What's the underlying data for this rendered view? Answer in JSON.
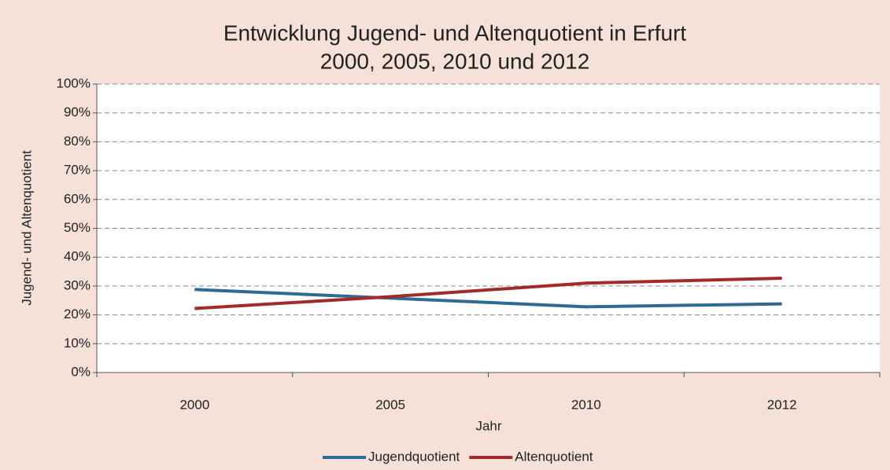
{
  "chart_data": {
    "type": "line",
    "title": "Entwicklung Jugend- und Altenquotient in Erfurt",
    "subtitle": "2000, 2005, 2010 und 2012",
    "x_label": "Jahr",
    "y_label": "Jugend- und Altenquotient",
    "categories": [
      "2000",
      "2005",
      "2010",
      "2012"
    ],
    "series": [
      {
        "name": "Jugendquotient",
        "color": "#2e6a94",
        "values": [
          28.8,
          25.8,
          22.8,
          23.8
        ]
      },
      {
        "name": "Altenquotient",
        "color": "#a32a2a",
        "values": [
          22.2,
          26.3,
          31.0,
          32.7
        ]
      }
    ],
    "ylim": [
      0,
      100
    ],
    "yticks": [
      {
        "value": 0,
        "label": "0%"
      },
      {
        "value": 10,
        "label": "10%"
      },
      {
        "value": 20,
        "label": "20%"
      },
      {
        "value": 30,
        "label": "30%"
      },
      {
        "value": 40,
        "label": "40%"
      },
      {
        "value": 50,
        "label": "50%"
      },
      {
        "value": 60,
        "label": "60%"
      },
      {
        "value": 70,
        "label": "70%"
      },
      {
        "value": 80,
        "label": "80%"
      },
      {
        "value": 90,
        "label": "90%"
      },
      {
        "value": 100,
        "label": "100%"
      }
    ],
    "grid": true,
    "legend": "bottom"
  }
}
